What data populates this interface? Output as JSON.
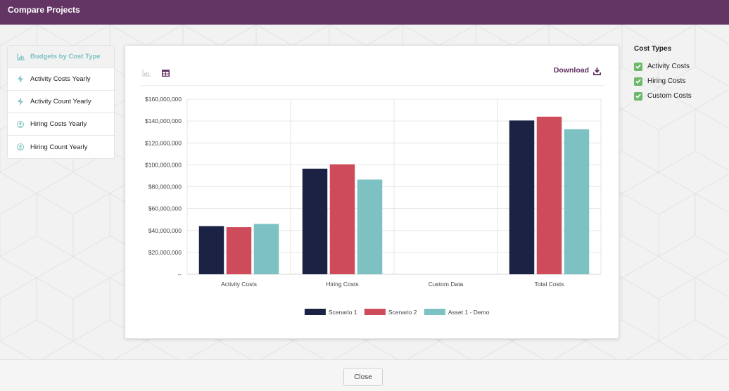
{
  "header": {
    "title": "Compare Projects"
  },
  "sidebar": {
    "items": [
      {
        "label": "Budgets by Cost Type",
        "icon": "bar-chart-icon",
        "active": true
      },
      {
        "label": "Activity Costs Yearly",
        "icon": "lightning-icon"
      },
      {
        "label": "Activity Count Yearly",
        "icon": "lightning-icon"
      },
      {
        "label": "Hiring Costs Yearly",
        "icon": "user-icon"
      },
      {
        "label": "Hiring Count Yearly",
        "icon": "user-icon"
      }
    ]
  },
  "toolbar": {
    "download_label": "Download"
  },
  "cost_types": {
    "title": "Cost Types",
    "items": [
      {
        "label": "Activity Costs",
        "checked": true
      },
      {
        "label": "Hiring Costs",
        "checked": true
      },
      {
        "label": "Custom Costs",
        "checked": true
      }
    ]
  },
  "footer": {
    "close_label": "Close"
  },
  "colors": {
    "header": "#633565",
    "accent": "#5e2d61",
    "teal": "#7dc1c3",
    "check": "#6db86b"
  },
  "chart_data": {
    "type": "bar",
    "title": "",
    "xlabel": "",
    "ylabel": "",
    "categories": [
      "Activity Costs",
      "Hiring Costs",
      "Custom Data",
      "Total Costs"
    ],
    "series": [
      {
        "name": "Scenario 1",
        "color": "#1b2244",
        "values": [
          44000000,
          96500000,
          0,
          140500000
        ]
      },
      {
        "name": "Scenario 2",
        "color": "#cd4b5b",
        "values": [
          43000000,
          100500000,
          0,
          144000000
        ]
      },
      {
        "name": "Asset 1 - Demo",
        "color": "#7dc1c3",
        "values": [
          46000000,
          86500000,
          0,
          132500000
        ]
      }
    ],
    "ylim": [
      0,
      160000000
    ],
    "yticks": [
      {
        "value": 0,
        "label": "--"
      },
      {
        "value": 20000000,
        "label": "$20,000,000"
      },
      {
        "value": 40000000,
        "label": "$40,000,000"
      },
      {
        "value": 60000000,
        "label": "$60,000,000"
      },
      {
        "value": 80000000,
        "label": "$80,000,000"
      },
      {
        "value": 100000000,
        "label": "$100,000,000"
      },
      {
        "value": 120000000,
        "label": "$120,000,000"
      },
      {
        "value": 140000000,
        "label": "$140,000,000"
      },
      {
        "value": 160000000,
        "label": "$160,000,000"
      }
    ],
    "grid": true,
    "legend_position": "bottom-center"
  }
}
